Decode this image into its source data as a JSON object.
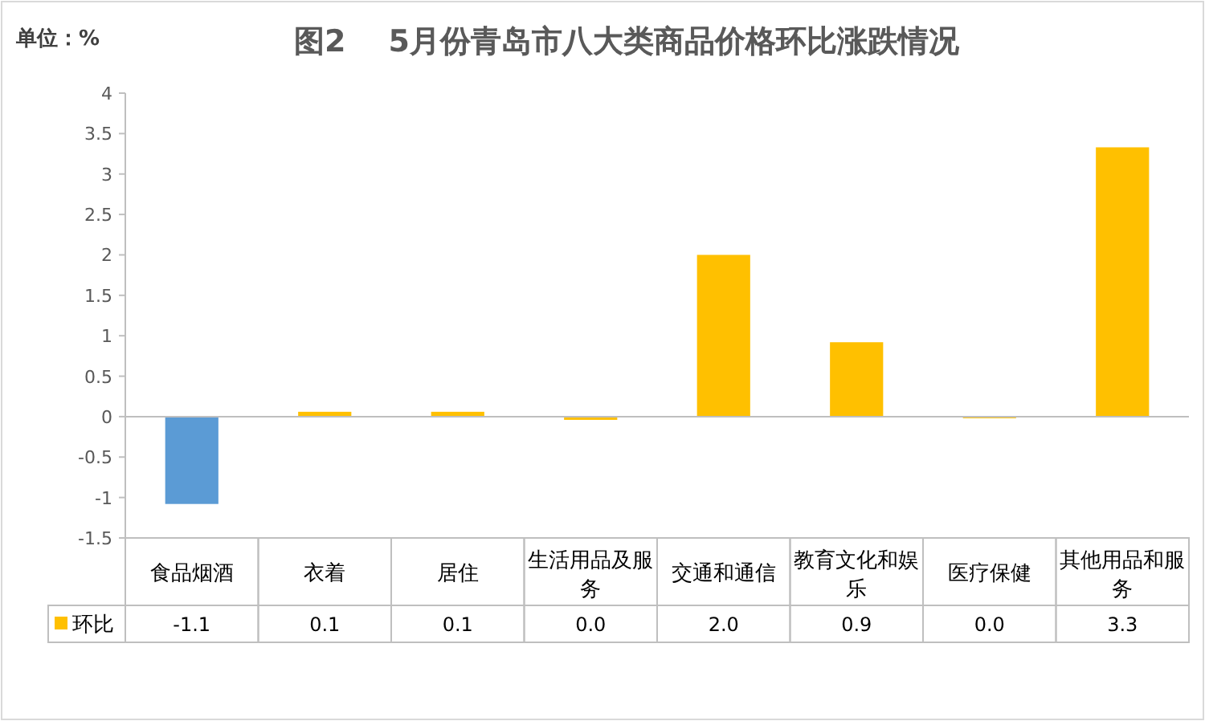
{
  "chart_data": {
    "type": "bar",
    "title": "图2    5月份青岛市八大类商品价格环比涨跌情况",
    "annotations": [
      "单位：%"
    ],
    "categories": [
      "食品烟酒",
      "衣着",
      "居住",
      "生活用品及服务",
      "交通和通信",
      "教育文化和娱乐",
      "医疗保健",
      "其他用品和服务"
    ],
    "series": [
      {
        "name": "环比",
        "color": "#ffc000",
        "colors": [
          "#5b9bd5",
          "#ffc000",
          "#ffc000",
          "#ffc000",
          "#ffc000",
          "#ffc000",
          "#ffc000",
          "#ffc000"
        ],
        "values": [
          -1.08,
          0.06,
          0.06,
          -0.04,
          2.0,
          0.92,
          -0.01,
          3.33
        ],
        "value_labels": [
          "-1.1",
          "0.1",
          "0.1",
          "0.0",
          "2.0",
          "0.9",
          "0.0",
          "3.3"
        ]
      }
    ],
    "ylim": [
      -1.5,
      4
    ],
    "yticks": [
      -1.5,
      -1,
      -0.5,
      0,
      0.5,
      1,
      1.5,
      2,
      2.5,
      3,
      3.5,
      4
    ],
    "legend": "bottom left"
  }
}
